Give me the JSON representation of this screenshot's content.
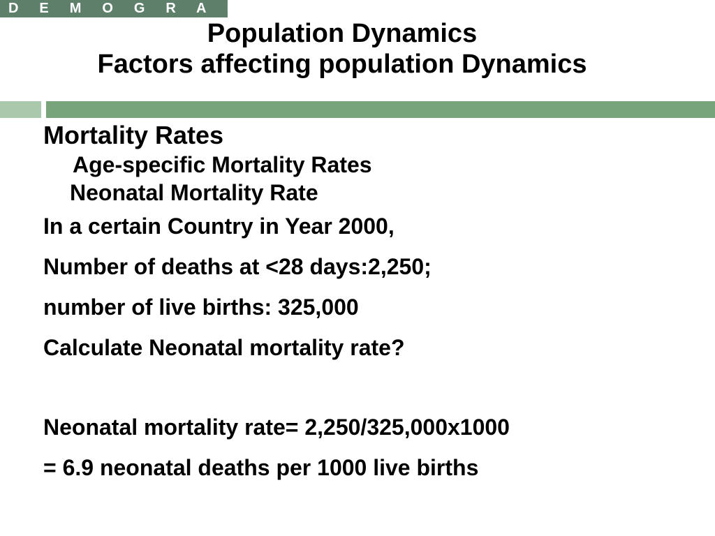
{
  "banner": {
    "text": "D E M O G R A P H Y"
  },
  "title": {
    "line1": "Population Dynamics",
    "line2": "Factors affecting population Dynamics"
  },
  "colors": {
    "banner_bg": "#5e7f6a",
    "rule_light": "#a9c8ac",
    "rule_dark": "#77a47b"
  },
  "content": {
    "heading": "Mortality Rates",
    "subheading_1": "Age-specific Mortality Rates",
    "subheading_2": "Neonatal Mortality Rate",
    "lines": [
      "In a certain Country in Year 2000,",
      "Number of deaths at <28 days:2,250;",
      "number of live births: 325,000",
      "Calculate Neonatal mortality rate?"
    ],
    "answer_lines": [
      "Neonatal mortality rate= 2,250/325,000x1000",
      "= 6.9 neonatal deaths per 1000 live births"
    ]
  }
}
